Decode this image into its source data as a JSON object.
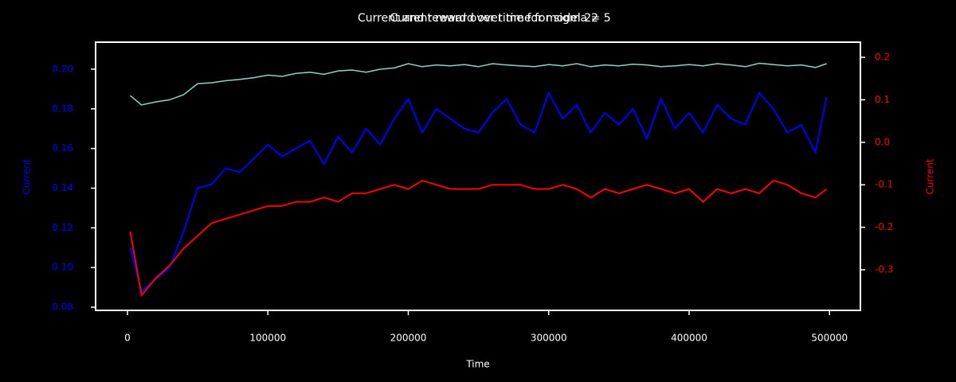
{
  "chart_data": {
    "type": "line",
    "titles": [
      "Current and reward over time for model 22",
      "Current reward over time for sigma = 5"
    ],
    "x_label": "Time",
    "y_label": "Current",
    "y2_label": "Current",
    "x": [
      2000,
      10000,
      20000,
      30000,
      40000,
      50000,
      60000,
      70000,
      80000,
      90000,
      100000,
      110000,
      120000,
      130000,
      140000,
      150000,
      160000,
      170000,
      180000,
      190000,
      200000,
      210000,
      220000,
      230000,
      240000,
      250000,
      260000,
      270000,
      280000,
      290000,
      300000,
      310000,
      320000,
      330000,
      340000,
      350000,
      360000,
      370000,
      380000,
      390000,
      400000,
      410000,
      420000,
      430000,
      440000,
      450000,
      460000,
      470000,
      480000,
      490000,
      498000
    ],
    "series": [
      {
        "name": "Current",
        "color": "#0000ff",
        "axis": "y",
        "values": [
          0.11,
          0.088,
          0.094,
          0.1,
          0.118,
          0.14,
          0.142,
          0.15,
          0.148,
          0.155,
          0.162,
          0.156,
          0.16,
          0.164,
          0.152,
          0.166,
          0.158,
          0.17,
          0.162,
          0.175,
          0.185,
          0.168,
          0.18,
          0.175,
          0.17,
          0.168,
          0.178,
          0.185,
          0.172,
          0.168,
          0.188,
          0.175,
          0.182,
          0.168,
          0.178,
          0.172,
          0.18,
          0.165,
          0.185,
          0.17,
          0.178,
          0.168,
          0.182,
          0.175,
          0.172,
          0.188,
          0.18,
          0.168,
          0.172,
          0.158,
          0.186
        ]
      },
      {
        "name": "Reward",
        "color": "#ff0000",
        "axis": "y2",
        "values": [
          -0.21,
          -0.36,
          -0.32,
          -0.29,
          -0.25,
          -0.22,
          -0.19,
          -0.18,
          -0.17,
          -0.16,
          -0.15,
          -0.15,
          -0.14,
          -0.14,
          -0.13,
          -0.14,
          -0.12,
          -0.12,
          -0.11,
          -0.1,
          -0.11,
          -0.09,
          -0.1,
          -0.11,
          -0.11,
          -0.11,
          -0.1,
          -0.1,
          -0.1,
          -0.11,
          -0.11,
          -0.1,
          -0.11,
          -0.13,
          -0.11,
          -0.12,
          -0.11,
          -0.1,
          -0.11,
          -0.12,
          -0.11,
          -0.14,
          -0.11,
          -0.12,
          -0.11,
          -0.12,
          -0.09,
          -0.1,
          -0.12,
          -0.13,
          -0.11
        ]
      },
      {
        "name": "Sigma",
        "color": "#8dd3c7",
        "axis": "y2",
        "values": [
          0.11,
          0.088,
          0.095,
          0.1,
          0.112,
          0.138,
          0.14,
          0.145,
          0.148,
          0.152,
          0.158,
          0.155,
          0.162,
          0.165,
          0.16,
          0.168,
          0.17,
          0.165,
          0.172,
          0.175,
          0.185,
          0.178,
          0.182,
          0.18,
          0.183,
          0.178,
          0.185,
          0.182,
          0.18,
          0.178,
          0.183,
          0.18,
          0.185,
          0.178,
          0.182,
          0.18,
          0.184,
          0.182,
          0.178,
          0.18,
          0.183,
          0.18,
          0.185,
          0.182,
          0.178,
          0.186,
          0.183,
          0.18,
          0.182,
          0.176,
          0.185
        ]
      }
    ],
    "xlim": [
      -22700,
      522000
    ],
    "xticks": [
      0,
      100000,
      200000,
      300000,
      400000,
      500000
    ],
    "ylim": [
      0.0784,
      0.2136
    ],
    "yticks": [
      {
        "value": 0.08,
        "label": "0.08"
      },
      {
        "value": 0.1,
        "label": "0.10"
      },
      {
        "value": 0.12,
        "label": "0.12"
      },
      {
        "value": 0.14,
        "label": "0.14"
      },
      {
        "value": 0.16,
        "label": "0.16"
      },
      {
        "value": 0.18,
        "label": "0.18"
      },
      {
        "value": 0.2,
        "label": "0.20"
      }
    ],
    "y2lim": [
      -0.3955,
      0.2356
    ],
    "y2ticks": [
      -0.3,
      -0.2,
      -0.1,
      {
        "value": 0,
        "label": "0.0"
      },
      0.1,
      0.2
    ],
    "y_color": "#0000ff",
    "y2_color": "#ff0000"
  }
}
